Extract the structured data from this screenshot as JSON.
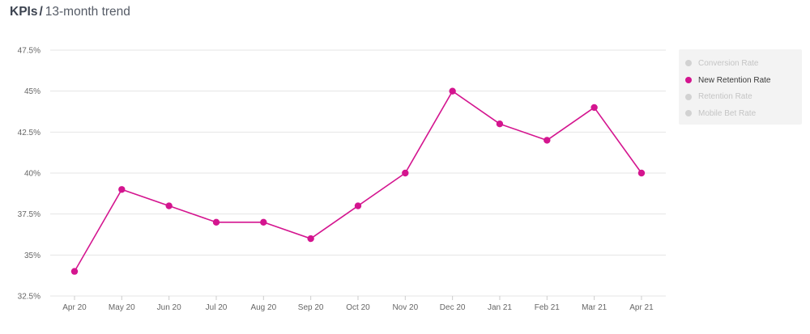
{
  "header": {
    "title": "KPIs",
    "separator": "/",
    "subtitle": "13-month trend"
  },
  "legend": {
    "items": [
      {
        "label": "Conversion Rate",
        "active": false
      },
      {
        "label": "New Retention Rate",
        "active": true
      },
      {
        "label": "Retention Rate",
        "active": false
      },
      {
        "label": "Mobile Bet Rate",
        "active": false
      }
    ]
  },
  "colors": {
    "series": "#d4158f",
    "inactive": "#d2d2d2",
    "grid": "#e4e4e4",
    "axis_text": "#666666"
  },
  "chart_data": {
    "type": "line",
    "title": "",
    "xlabel": "",
    "ylabel": "",
    "categories": [
      "Apr 20",
      "May 20",
      "Jun 20",
      "Jul 20",
      "Aug 20",
      "Sep 20",
      "Oct 20",
      "Nov 20",
      "Dec 20",
      "Jan 21",
      "Feb 21",
      "Mar 21",
      "Apr 21"
    ],
    "series": [
      {
        "name": "New Retention Rate",
        "values": [
          34,
          39,
          38,
          37,
          37,
          36,
          38,
          40,
          45,
          43,
          42,
          44,
          40
        ]
      }
    ],
    "ylim": [
      32.5,
      47.5
    ],
    "yticks": [
      32.5,
      35,
      37.5,
      40,
      42.5,
      45,
      47.5
    ],
    "ytick_labels": [
      "32.5%",
      "35%",
      "37.5%",
      "40%",
      "42.5%",
      "45%",
      "47.5%"
    ],
    "grid": true,
    "legend_position": "right"
  }
}
